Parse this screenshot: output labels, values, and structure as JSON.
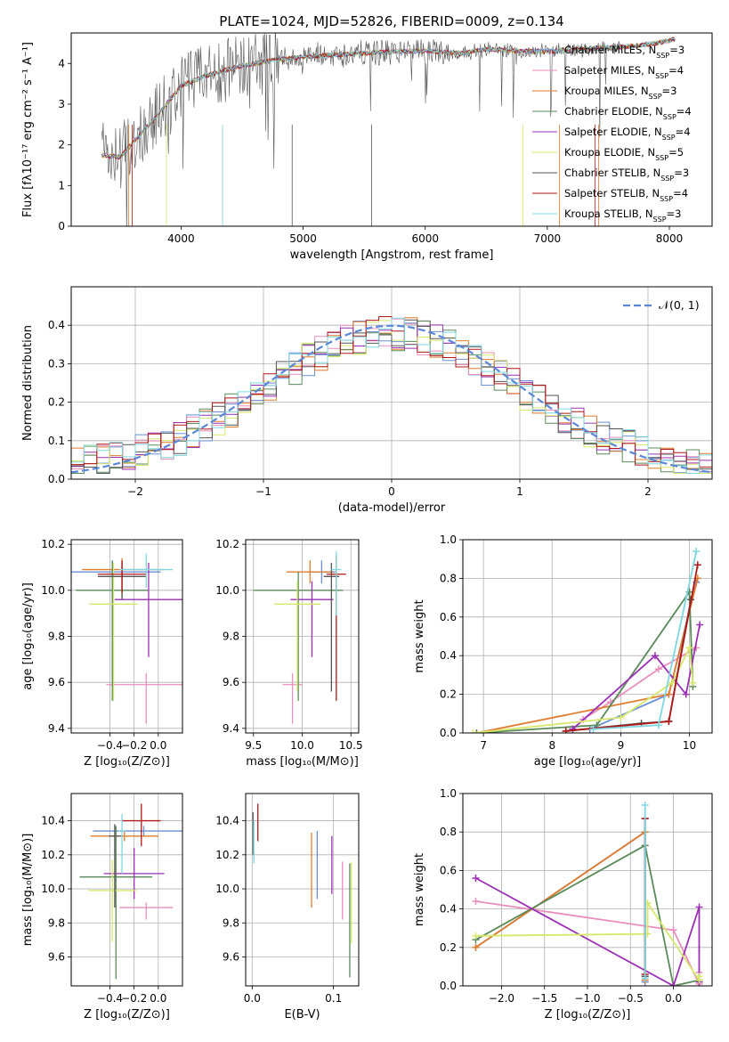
{
  "figure": {
    "title": "PLATE=1024, MJD=52826, FIBERID=0009, z=0.134"
  },
  "chart_data": [
    {
      "id": "spectrum",
      "type": "line",
      "xlabel": "wavelength [Angstrom, rest frame]",
      "ylabel": "Flux [fλ10⁻¹⁷ erg cm⁻² s⁻¹ A⁻¹]",
      "xlim": [
        3100,
        8350
      ],
      "ylim": [
        0,
        4.75
      ],
      "xticks": [
        4000,
        5000,
        6000,
        7000,
        8000
      ],
      "yticks": [
        0,
        1,
        2,
        3,
        4
      ],
      "grid": false,
      "legend_position": "upper-right",
      "series": [
        {
          "name": "Chabrier MILES, N_SSP=3",
          "color": "#6a8fd8"
        },
        {
          "name": "Salpeter MILES, N_SSP=4",
          "color": "#e88fbd"
        },
        {
          "name": "Kroupa MILES, N_SSP=3",
          "color": "#e07b2e"
        },
        {
          "name": "Chabrier ELODIE, N_SSP=4",
          "color": "#5a8a5a"
        },
        {
          "name": "Salpeter ELODIE, N_SSP=4",
          "color": "#9b30b5"
        },
        {
          "name": "Kroupa ELODIE, N_SSP=5",
          "color": "#d6e86b"
        },
        {
          "name": "Chabrier STELIB, N_SSP=3",
          "color": "#555555"
        },
        {
          "name": "Salpeter STELIB, N_SSP=4",
          "color": "#b01818"
        },
        {
          "name": "Kroupa STELIB, N_SSP=3",
          "color": "#7fd6e0"
        }
      ],
      "continuum": {
        "x": [
          3350,
          3500,
          3650,
          3800,
          4000,
          4200,
          4500,
          4800,
          5000,
          5200,
          5500,
          5800,
          6000,
          6300,
          6500,
          6800,
          7000,
          7300,
          7600,
          7900,
          8050
        ],
        "y": [
          1.75,
          1.7,
          2.2,
          2.7,
          3.45,
          3.7,
          3.95,
          4.1,
          4.15,
          4.2,
          4.25,
          4.3,
          4.3,
          4.25,
          4.35,
          4.3,
          4.3,
          4.35,
          4.4,
          4.5,
          4.6
        ]
      }
    },
    {
      "id": "residuals",
      "type": "line",
      "xlabel": "(data-model)/error",
      "ylabel": "Normed distribution",
      "xlim": [
        -2.5,
        2.5
      ],
      "ylim": [
        0,
        0.5
      ],
      "xticks": [
        -2,
        -1,
        0,
        1,
        2
      ],
      "yticks": [
        0.0,
        0.1,
        0.2,
        0.3,
        0.4
      ],
      "grid": true,
      "legend_position": "upper-right",
      "gaussian_label": "𝒩(0, 1)",
      "gaussian_color": "#5b87d8",
      "bin_width": 0.1
    },
    {
      "id": "age-vs-Z",
      "type": "scatter",
      "xlabel": "Z [log₁₀(Z/Z⊙)]",
      "ylabel": "age  [log₁₀(age/yr)]",
      "xlim": [
        -0.72,
        0.2
      ],
      "ylim": [
        9.38,
        10.22
      ],
      "xticks": [
        -0.4,
        -0.2,
        0.0
      ],
      "yticks": [
        9.4,
        9.6,
        9.8,
        10.0,
        10.2
      ],
      "grid": true,
      "points": [
        {
          "x": -0.38,
          "y": 10.08,
          "xerr": 0.4,
          "yerr": [
            0.5,
            0.05
          ],
          "color": "#6a8fd8"
        },
        {
          "x": -0.1,
          "y": 9.59,
          "xerr": 0.33,
          "yerr": [
            0.17,
            0.05
          ],
          "color": "#e88fbd"
        },
        {
          "x": -0.3,
          "y": 10.09,
          "xerr": 0.33,
          "yerr": [
            0.12,
            0.05
          ],
          "color": "#e07b2e"
        },
        {
          "x": -0.38,
          "y": 10.0,
          "xerr": 0.3,
          "yerr": [
            0.48,
            0.13
          ],
          "color": "#5a8a5a"
        },
        {
          "x": -0.08,
          "y": 9.96,
          "xerr": 0.28,
          "yerr": [
            0.25,
            0.16
          ],
          "color": "#9b30b5"
        },
        {
          "x": -0.37,
          "y": 9.94,
          "xerr": 0.2,
          "yerr": [
            0.42,
            0.18
          ],
          "color": "#d6e86b"
        },
        {
          "x": -0.3,
          "y": 10.06,
          "xerr": 0.2,
          "yerr": [
            0.1,
            0.06
          ],
          "color": "#555555"
        },
        {
          "x": -0.3,
          "y": 10.07,
          "xerr": 0.2,
          "yerr": [
            0.08,
            0.06
          ],
          "color": "#b01818"
        },
        {
          "x": -0.1,
          "y": 10.09,
          "xerr": 0.22,
          "yerr": [
            0.08,
            0.07
          ],
          "color": "#7fd6e0"
        }
      ]
    },
    {
      "id": "age-vs-mass",
      "type": "scatter",
      "xlabel": "mass [log₁₀(M/M⊙)]",
      "ylabel": "",
      "xlim": [
        9.42,
        10.58
      ],
      "ylim": [
        9.38,
        10.22
      ],
      "xticks": [
        9.5,
        10.0,
        10.5
      ],
      "yticks": [
        9.4,
        9.6,
        9.8,
        10.0,
        10.2
      ],
      "grid": true,
      "points": [
        {
          "x": 10.2,
          "y": 10.08,
          "xerr": 0.14,
          "yerr": [
            0.05,
            0.05
          ],
          "color": "#6a8fd8"
        },
        {
          "x": 9.9,
          "y": 9.59,
          "xerr": 0.1,
          "yerr": [
            0.17,
            0.05
          ],
          "color": "#e88fbd"
        },
        {
          "x": 10.08,
          "y": 10.08,
          "xerr": 0.24,
          "yerr": [
            0.05,
            0.05
          ],
          "color": "#e07b2e"
        },
        {
          "x": 9.96,
          "y": 10.0,
          "xerr": 0.46,
          "yerr": [
            0.48,
            0.08
          ],
          "color": "#5a8a5a"
        },
        {
          "x": 10.1,
          "y": 9.96,
          "xerr": 0.22,
          "yerr": [
            0.25,
            0.08
          ],
          "color": "#9b30b5"
        },
        {
          "x": 9.95,
          "y": 9.94,
          "xerr": 0.24,
          "yerr": [
            0.38,
            0.1
          ],
          "color": "#d6e86b"
        },
        {
          "x": 10.3,
          "y": 10.06,
          "xerr": 0.08,
          "yerr": [
            0.5,
            0.06
          ],
          "color": "#555555"
        },
        {
          "x": 10.35,
          "y": 10.07,
          "xerr": 0.1,
          "yerr": [
            0.55,
            0.08
          ],
          "color": "#b01818"
        },
        {
          "x": 10.35,
          "y": 10.09,
          "xerr": 0.05,
          "yerr": [
            0.2,
            0.08
          ],
          "color": "#7fd6e0"
        }
      ]
    },
    {
      "id": "weight-vs-age",
      "type": "line",
      "xlabel": "age  [log₁₀(age/yr)]",
      "ylabel": "mass weight",
      "xlim": [
        6.7,
        10.33
      ],
      "ylim": [
        0,
        1.0
      ],
      "xticks": [
        7,
        8,
        9,
        10
      ],
      "yticks": [
        0.0,
        0.2,
        0.4,
        0.6,
        0.8,
        1.0
      ],
      "grid": true,
      "series": [
        {
          "color": "#6a8fd8",
          "x": [
            8.55,
            9.7,
            10.1
          ],
          "y": [
            0.02,
            0.2,
            0.78
          ]
        },
        {
          "color": "#e88fbd",
          "x": [
            8.45,
            8.85,
            9.55,
            10.1
          ],
          "y": [
            0.07,
            0.16,
            0.33,
            0.44
          ]
        },
        {
          "color": "#e07b2e",
          "x": [
            6.9,
            9.7,
            10.12
          ],
          "y": [
            0.0,
            0.2,
            0.8
          ]
        },
        {
          "color": "#5a8a5a",
          "x": [
            6.9,
            8.65,
            10.0,
            10.05
          ],
          "y": [
            0.0,
            0.04,
            0.73,
            0.24
          ]
        },
        {
          "color": "#9b30b5",
          "x": [
            8.3,
            9.5,
            9.95,
            10.15
          ],
          "y": [
            0.02,
            0.4,
            0.2,
            0.56
          ]
        },
        {
          "color": "#d6e86b",
          "x": [
            6.85,
            9.0,
            9.75,
            10.0,
            10.05
          ],
          "y": [
            0.0,
            0.08,
            0.26,
            0.44,
            0.26
          ]
        },
        {
          "color": "#555555",
          "x": [
            8.2,
            9.3,
            9.7,
            10.02
          ],
          "y": [
            0.01,
            0.05,
            0.06,
            0.69
          ]
        },
        {
          "color": "#b01818",
          "x": [
            8.2,
            9.7,
            10.12
          ],
          "y": [
            0.01,
            0.06,
            0.87
          ]
        },
        {
          "color": "#7fd6e0",
          "x": [
            8.6,
            9.55,
            10.1
          ],
          "y": [
            0.02,
            0.04,
            0.94
          ]
        }
      ]
    },
    {
      "id": "mass-vs-Z",
      "type": "scatter",
      "xlabel": "Z [log₁₀(Z/Z⊙)]",
      "ylabel": "mass [log₁₀(M/M⊙)]",
      "xlim": [
        -0.72,
        0.2
      ],
      "ylim": [
        9.43,
        10.56
      ],
      "xticks": [
        -0.4,
        -0.2,
        0.0
      ],
      "yticks": [
        9.6,
        9.8,
        10.0,
        10.2,
        10.4
      ],
      "grid": true,
      "points": [
        {
          "x": -0.12,
          "y": 10.34,
          "xerr": 0.42,
          "yerr": [
            0.03,
            0.03
          ],
          "color": "#6a8fd8"
        },
        {
          "x": -0.1,
          "y": 9.89,
          "xerr": 0.22,
          "yerr": [
            0.07,
            0.03
          ],
          "color": "#e88fbd"
        },
        {
          "x": -0.28,
          "y": 10.31,
          "xerr": 0.28,
          "yerr": [
            0.03,
            0.03
          ],
          "color": "#e07b2e"
        },
        {
          "x": -0.35,
          "y": 10.07,
          "xerr": 0.3,
          "yerr": [
            0.6,
            0.3
          ],
          "color": "#5a8a5a"
        },
        {
          "x": -0.2,
          "y": 10.09,
          "xerr": 0.25,
          "yerr": [
            0.15,
            0.15
          ],
          "color": "#9b30b5"
        },
        {
          "x": -0.38,
          "y": 9.99,
          "xerr": 0.2,
          "yerr": [
            0.3,
            0.18
          ],
          "color": "#d6e86b"
        },
        {
          "x": -0.36,
          "y": 10.31,
          "xerr": 0.05,
          "yerr": [
            0.42,
            0.07
          ],
          "color": "#555555"
        },
        {
          "x": -0.14,
          "y": 10.4,
          "xerr": 0.16,
          "yerr": [
            0.15,
            0.1
          ],
          "color": "#b01818"
        },
        {
          "x": -0.3,
          "y": 10.34,
          "xerr": 0.03,
          "yerr": [
            0.25,
            0.1
          ],
          "color": "#7fd6e0"
        }
      ]
    },
    {
      "id": "mass-vs-EBV",
      "type": "scatter",
      "xlabel": "E(B-V)",
      "ylabel": "",
      "xlim": [
        -0.008,
        0.131
      ],
      "ylim": [
        9.43,
        10.56
      ],
      "xticks": [
        0.0,
        0.1
      ],
      "yticks": [
        9.6,
        9.8,
        10.0,
        10.2,
        10.4
      ],
      "grid": true,
      "points": [
        {
          "x": 0.08,
          "y": 10.14,
          "yerr": [
            0.2,
            0.2
          ],
          "color": "#6a8fd8"
        },
        {
          "x": 0.111,
          "y": 10.02,
          "yerr": [
            0.2,
            0.14
          ],
          "color": "#e88fbd"
        },
        {
          "x": 0.073,
          "y": 10.11,
          "yerr": [
            0.22,
            0.22
          ],
          "color": "#e07b2e"
        },
        {
          "x": 0.12,
          "y": 9.85,
          "yerr": [
            0.37,
            0.3
          ],
          "color": "#5a8a5a"
        },
        {
          "x": 0.098,
          "y": 10.15,
          "yerr": [
            0.18,
            0.16
          ],
          "color": "#9b30b5"
        },
        {
          "x": 0.122,
          "y": 9.92,
          "yerr": [
            0.24,
            0.24
          ],
          "color": "#d6e86b"
        },
        {
          "x": 0.001,
          "y": 10.32,
          "yerr": [
            0.12,
            0.13
          ],
          "color": "#555555"
        },
        {
          "x": 0.007,
          "y": 10.38,
          "yerr": [
            0.1,
            0.12
          ],
          "color": "#b01818"
        },
        {
          "x": 0.002,
          "y": 10.3,
          "yerr": [
            0.15,
            0.1
          ],
          "color": "#7fd6e0"
        }
      ]
    },
    {
      "id": "weight-vs-Z",
      "type": "line",
      "xlabel": "Z [log₁₀(Z/Z⊙)]",
      "ylabel": "mass weight",
      "xlim": [
        -2.45,
        0.45
      ],
      "ylim": [
        0,
        1.0
      ],
      "xticks": [
        -2.0,
        -1.5,
        -1.0,
        -0.5,
        0.0
      ],
      "yticks": [
        0.0,
        0.2,
        0.4,
        0.6,
        0.8,
        1.0
      ],
      "grid": true,
      "series": [
        {
          "color": "#6a8fd8",
          "x": [
            -2.3,
            -0.33,
            -0.33
          ],
          "y": [
            0.2,
            0.8,
            0.02
          ]
        },
        {
          "color": "#e88fbd",
          "x": [
            -2.3,
            0.0,
            0.3,
            0.3
          ],
          "y": [
            0.44,
            0.29,
            0.01,
            0.07
          ]
        },
        {
          "color": "#e07b2e",
          "x": [
            -2.3,
            -0.33,
            -0.33
          ],
          "y": [
            0.2,
            0.8,
            0.03
          ]
        },
        {
          "color": "#5a8a5a",
          "x": [
            -2.3,
            -0.33,
            0.0,
            0.3
          ],
          "y": [
            0.24,
            0.73,
            0.0,
            0.03
          ]
        },
        {
          "color": "#9b30b5",
          "x": [
            -2.3,
            0.0,
            0.3,
            0.3
          ],
          "y": [
            0.56,
            0.0,
            0.41,
            0.02
          ]
        },
        {
          "color": "#d6e86b",
          "x": [
            -2.3,
            -0.3,
            -0.3,
            0.3,
            0.3
          ],
          "y": [
            0.26,
            0.27,
            0.43,
            0.03,
            0.05
          ]
        },
        {
          "color": "#555555",
          "x": [
            -0.33,
            -0.33
          ],
          "y": [
            0.87,
            0.05
          ]
        },
        {
          "color": "#b01818",
          "x": [
            -0.33,
            -0.33
          ],
          "y": [
            0.87,
            0.06
          ]
        },
        {
          "color": "#7fd6e0",
          "x": [
            -0.33,
            -0.33
          ],
          "y": [
            0.94,
            0.04
          ]
        }
      ]
    }
  ]
}
